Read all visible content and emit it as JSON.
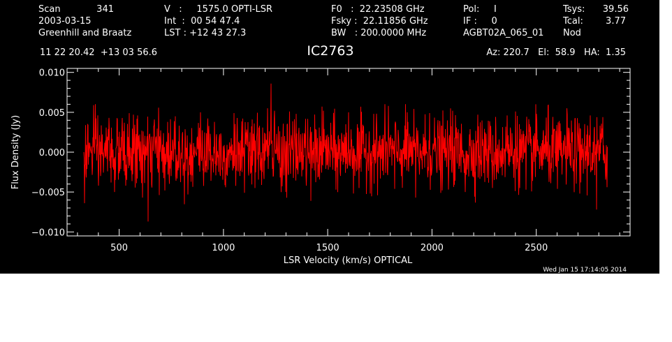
{
  "header": {
    "col1": {
      "scan_label": "Scan",
      "scan_value": "341",
      "date": "2003-03-15",
      "observer": "Greenhill and Braatz",
      "coords": "11 22 20.42  +13 03 56.6"
    },
    "col2": {
      "v_line": "V   :     1575.0 OPTI-LSR",
      "int_line": "Int  :  00 54 47.4",
      "lst_line": "LST : +12 43 27.3"
    },
    "col3": {
      "f0_line": "F0   :  22.23508 GHz",
      "fsky_line": "Fsky :  22.11856 GHz",
      "bw_line": "BW   : 200.0000 MHz"
    },
    "col4": {
      "pol_line": "Pol:     I",
      "if_line": "IF :     0",
      "project": "AGBT02A_065_01"
    },
    "col5": {
      "tsys_label": "Tsys:",
      "tsys_value": "39.56",
      "tcal_label": "Tcal:",
      "tcal_value": "3.77",
      "mode": "Nod"
    },
    "source_name": "IC2763",
    "pointing": "Az: 220.7   El:  58.9   HA:  1.35",
    "timestamp": "Wed Jan 15 17:14:05 2014"
  },
  "colors": {
    "background": "#000000",
    "axes": "#ffffff",
    "series": "#ff0000"
  },
  "chart_data": {
    "type": "line",
    "xlabel": "LSR Velocity (km/s) OPTICAL",
    "ylabel": "Flux Density (Jy)",
    "xlim": [
      250,
      2950
    ],
    "ylim": [
      -0.0105,
      0.0105
    ],
    "x_ticks": [
      500,
      1000,
      1500,
      2000,
      2500
    ],
    "x_tick_labels": [
      "500",
      "1000",
      "1500",
      "2000",
      "2500"
    ],
    "y_ticks": [
      -0.01,
      -0.005,
      0.0,
      0.005,
      0.01
    ],
    "y_tick_labels": [
      "−0.010",
      "−0.005",
      "0.000",
      "0.005",
      "0.010"
    ],
    "grid": false,
    "legend": "none",
    "series": [
      {
        "x_start": 330,
        "x_end": 2840,
        "mean": 0.0,
        "rms": 0.0021,
        "min": -0.0087,
        "max": 0.0086,
        "points": [
          [
            330,
            0.0
          ],
          [
            334,
            -0.0064
          ],
          [
            350,
            0.0034
          ],
          [
            376,
            0.0059
          ],
          [
            401,
            -0.0042
          ],
          [
            452,
            0.0043
          ],
          [
            478,
            -0.005
          ],
          [
            530,
            -0.0042
          ],
          [
            588,
            0.0046
          ],
          [
            612,
            -0.0057
          ],
          [
            640,
            -0.0087
          ],
          [
            668,
            0.0041
          ],
          [
            720,
            -0.0048
          ],
          [
            770,
            0.0045
          ],
          [
            830,
            -0.0053
          ],
          [
            890,
            0.005
          ],
          [
            957,
            0.0038
          ],
          [
            1010,
            -0.0044
          ],
          [
            1050,
            0.0049
          ],
          [
            1100,
            -0.0051
          ],
          [
            1150,
            -0.0045
          ],
          [
            1213,
            0.0055
          ],
          [
            1228,
            0.0086
          ],
          [
            1246,
            0.0052
          ],
          [
            1300,
            -0.005
          ],
          [
            1350,
            0.0048
          ],
          [
            1420,
            -0.0061
          ],
          [
            1480,
            0.0052
          ],
          [
            1540,
            -0.0047
          ],
          [
            1600,
            0.005
          ],
          [
            1650,
            -0.0045
          ],
          [
            1720,
            0.0048
          ],
          [
            1790,
            0.0058
          ],
          [
            1820,
            -0.0046
          ],
          [
            1880,
            0.005
          ],
          [
            1920,
            -0.0057
          ],
          [
            1990,
            0.0049
          ],
          [
            2050,
            -0.0048
          ],
          [
            2100,
            0.0052
          ],
          [
            2160,
            -0.005
          ],
          [
            2220,
            0.0047
          ],
          [
            2290,
            -0.0045
          ],
          [
            2360,
            0.0046
          ],
          [
            2400,
            0.0051
          ],
          [
            2450,
            -0.0047
          ],
          [
            2500,
            0.0048
          ],
          [
            2558,
            0.0059
          ],
          [
            2600,
            -0.0046
          ],
          [
            2650,
            0.0047
          ],
          [
            2710,
            -0.0052
          ],
          [
            2760,
            0.0046
          ],
          [
            2790,
            -0.0072
          ],
          [
            2820,
            0.0044
          ],
          [
            2840,
            -0.0044
          ]
        ]
      }
    ]
  }
}
